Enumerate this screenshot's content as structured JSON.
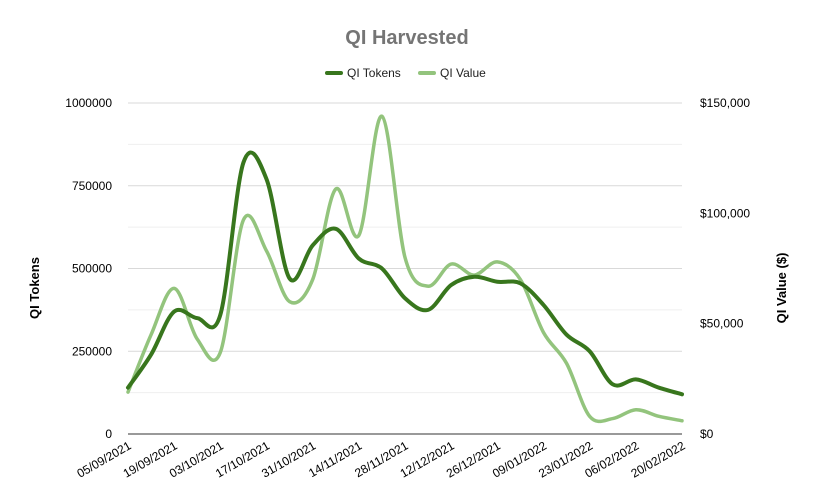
{
  "chart_data": {
    "type": "line",
    "title": "QI Harvested",
    "x": [
      "05/09/2021",
      "12/09/2021",
      "19/09/2021",
      "26/09/2021",
      "03/10/2021",
      "10/10/2021",
      "17/10/2021",
      "24/10/2021",
      "31/10/2021",
      "07/11/2021",
      "14/11/2021",
      "21/11/2021",
      "28/11/2021",
      "05/12/2021",
      "12/12/2021",
      "19/12/2021",
      "26/12/2021",
      "02/01/2022",
      "09/01/2022",
      "16/01/2022",
      "23/01/2022",
      "30/01/2022",
      "06/02/2022",
      "13/02/2022",
      "20/02/2022"
    ],
    "x_tick_labels": [
      "05/09/2021",
      "19/09/2021",
      "03/10/2021",
      "17/10/2021",
      "31/10/2021",
      "14/11/2021",
      "28/11/2021",
      "12/12/2021",
      "26/12/2021",
      "09/01/2022",
      "23/01/2022",
      "06/02/2022",
      "20/02/2022"
    ],
    "series": [
      {
        "name": "QI Tokens",
        "axis": "left",
        "color": "#38761d",
        "values": [
          140000,
          240000,
          370000,
          350000,
          360000,
          820000,
          770000,
          470000,
          570000,
          620000,
          530000,
          500000,
          410000,
          375000,
          450000,
          475000,
          460000,
          455000,
          390000,
          300000,
          250000,
          150000,
          165000,
          140000,
          120000
        ]
      },
      {
        "name": "QI Value",
        "axis": "right",
        "color": "#93c47d",
        "values": [
          19000,
          45000,
          66000,
          43000,
          37000,
          97000,
          83000,
          60000,
          70000,
          111000,
          90000,
          144000,
          80000,
          67000,
          77000,
          72000,
          78000,
          70000,
          46000,
          32000,
          8000,
          7000,
          11000,
          8000,
          6000
        ]
      }
    ],
    "y_left": {
      "label": "QI Tokens",
      "lim": [
        0,
        1000000
      ],
      "ticks": [
        0,
        250000,
        500000,
        750000,
        1000000
      ],
      "tick_labels": [
        "0",
        "250000",
        "500000",
        "750000",
        "1000000"
      ]
    },
    "y_right": {
      "label": "QI Value ($)",
      "lim": [
        0,
        150000
      ],
      "ticks": [
        0,
        50000,
        100000,
        150000
      ],
      "tick_labels": [
        "$0",
        "$50,000",
        "$100,000",
        "$150,000"
      ]
    },
    "grid": true,
    "legend": "top-center"
  }
}
